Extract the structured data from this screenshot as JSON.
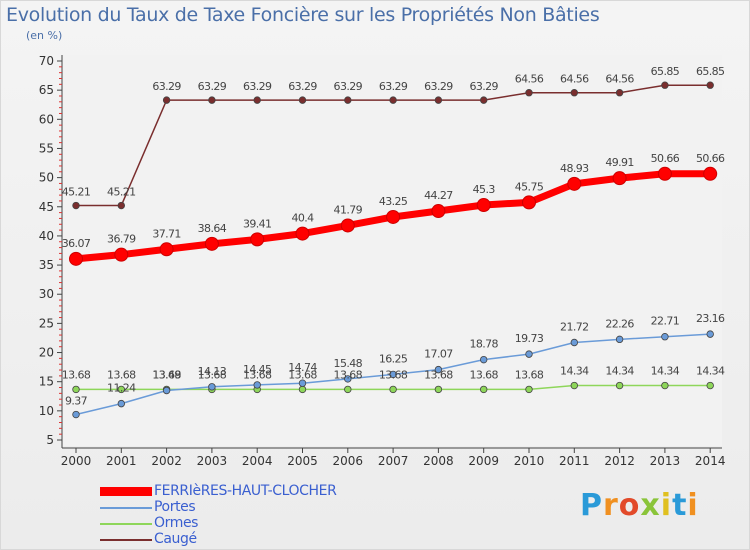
{
  "chart_data": {
    "type": "line",
    "title": "Evolution du Taux de Taxe Foncière sur les Propriétés Non Bâties",
    "subtitle": "(en %)",
    "categories": [
      "2000",
      "2001",
      "2002",
      "2003",
      "2004",
      "2005",
      "2006",
      "2007",
      "2008",
      "2009",
      "2010",
      "2011",
      "2012",
      "2013",
      "2014"
    ],
    "yticks": [
      "5",
      "10",
      "15",
      "20",
      "25",
      "30",
      "35",
      "40",
      "45",
      "50",
      "55",
      "60",
      "65",
      "70"
    ],
    "ylim": [
      5,
      70
    ],
    "grid": false,
    "series": [
      {
        "name": "FERRIèRES-HAUT-CLOCHER",
        "color": "#ff0000",
        "values": [
          36.07,
          36.79,
          37.71,
          38.64,
          39.41,
          40.4,
          41.79,
          43.25,
          44.27,
          45.3,
          45.75,
          48.93,
          49.91,
          50.66,
          50.66
        ],
        "labels": [
          "36.07",
          "36.79",
          "37.71",
          "38.64",
          "39.41",
          "40.4",
          "41.79",
          "43.25",
          "44.27",
          "45.3",
          "45.75",
          "48.93",
          "49.91",
          "50.66",
          "50.66"
        ]
      },
      {
        "name": "Portes",
        "color": "#6a9bd8",
        "values": [
          9.37,
          11.24,
          13.49,
          14.13,
          14.45,
          14.74,
          15.48,
          16.25,
          17.07,
          18.78,
          19.73,
          21.72,
          22.26,
          22.71,
          23.16
        ],
        "labels": [
          "9.37",
          "11.24",
          "13.49",
          "14.13",
          "14.45",
          "14.74",
          "15.48",
          "16.25",
          "17.07",
          "18.78",
          "19.73",
          "21.72",
          "22.26",
          "22.71",
          "23.16"
        ]
      },
      {
        "name": "Ormes",
        "color": "#8ed65a",
        "values": [
          13.68,
          13.68,
          13.68,
          13.68,
          13.68,
          13.68,
          13.68,
          13.68,
          13.68,
          13.68,
          13.68,
          14.34,
          14.34,
          14.34,
          14.34
        ],
        "labels": [
          "13.68",
          "13.68",
          "13.68",
          "13.68",
          "13.68",
          "13.68",
          "13.68",
          "13.68",
          "13.68",
          "13.68",
          "13.68",
          "14.34",
          "14.34",
          "14.34",
          "14.34"
        ]
      },
      {
        "name": "Caugé",
        "color": "#7a2e2e",
        "values": [
          45.21,
          45.21,
          63.29,
          63.29,
          63.29,
          63.29,
          63.29,
          63.29,
          63.29,
          63.29,
          64.56,
          64.56,
          64.56,
          65.85,
          65.85
        ],
        "labels": [
          "45.21",
          "45.21",
          "63.29",
          "63.29",
          "63.29",
          "63.29",
          "63.29",
          "63.29",
          "63.29",
          "63.29",
          "64.56",
          "64.56",
          "64.56",
          "65.85",
          "65.85"
        ]
      }
    ],
    "legend_position": "bottom-left"
  },
  "logo": {
    "letters": [
      "P",
      "r",
      "o",
      "x",
      "i",
      "t",
      "i"
    ],
    "colors": [
      "#2a9ad8",
      "#f09020",
      "#e24a2a",
      "#8ac43a",
      "#e0c020",
      "#2a9ad8",
      "#f09020"
    ]
  }
}
